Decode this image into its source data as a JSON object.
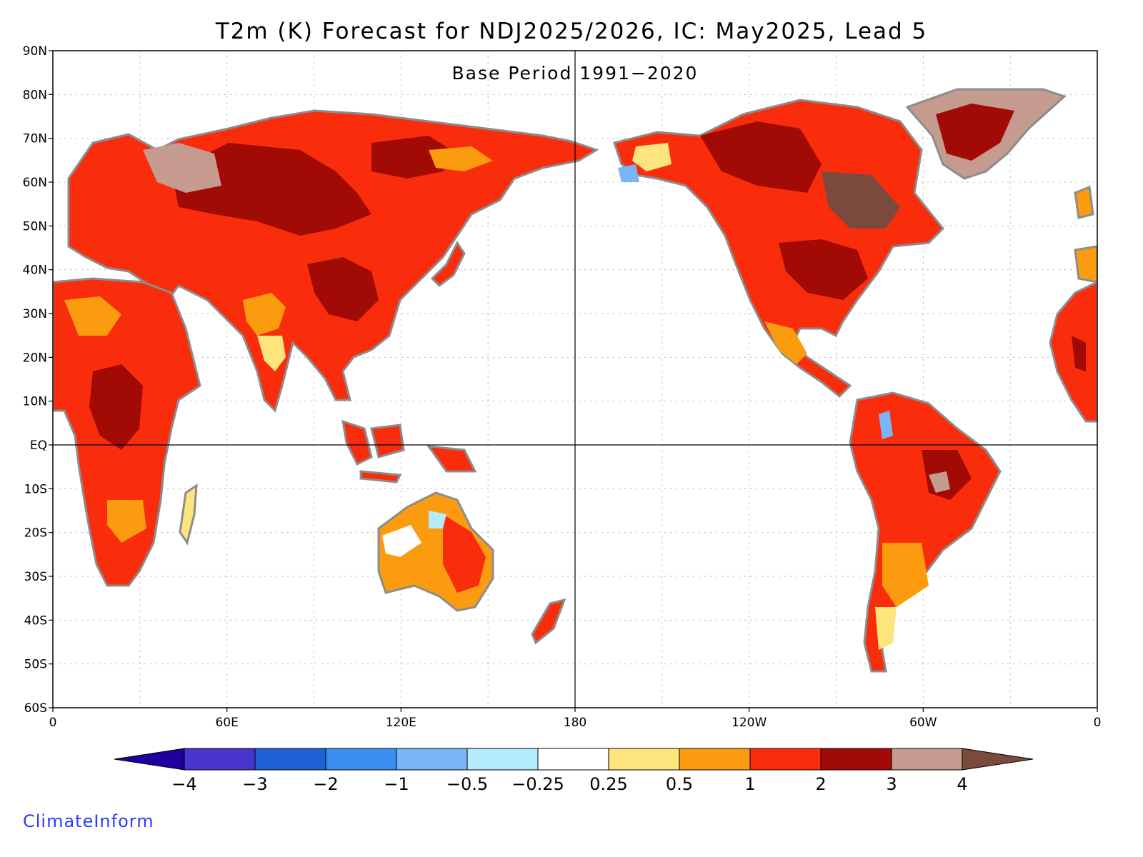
{
  "title": "T2m (K) Forecast for NDJ2025/2026, IC: May2025, Lead 5",
  "subtitle": "Base Period 1991−2020",
  "credit": "ClimateInform",
  "lat_labels": [
    "90N",
    "80N",
    "70N",
    "60N",
    "50N",
    "40N",
    "30N",
    "20N",
    "10N",
    "EQ",
    "10S",
    "20S",
    "30S",
    "40S",
    "50S",
    "60S"
  ],
  "lon_labels": [
    "0",
    "60E",
    "120E",
    "180",
    "120W",
    "60W",
    "0"
  ],
  "colorbar": {
    "colors": [
      "#1e00a0",
      "#4735cd",
      "#1f62d6",
      "#3b8ef0",
      "#7ab5f7",
      "#b4ecfb",
      "#ffffff",
      "#fde47c",
      "#fb9c10",
      "#f92d0c",
      "#a10a05",
      "#c49b8e",
      "#7a4a3c"
    ],
    "labels": [
      "−4",
      "−3",
      "−2",
      "−1",
      "−0.5",
      "−0.25",
      "0.25",
      "0.5",
      "1",
      "2",
      "3",
      "4"
    ]
  },
  "colors": {
    "coast": "#8c8c8c",
    "lakes": "#000000"
  }
}
